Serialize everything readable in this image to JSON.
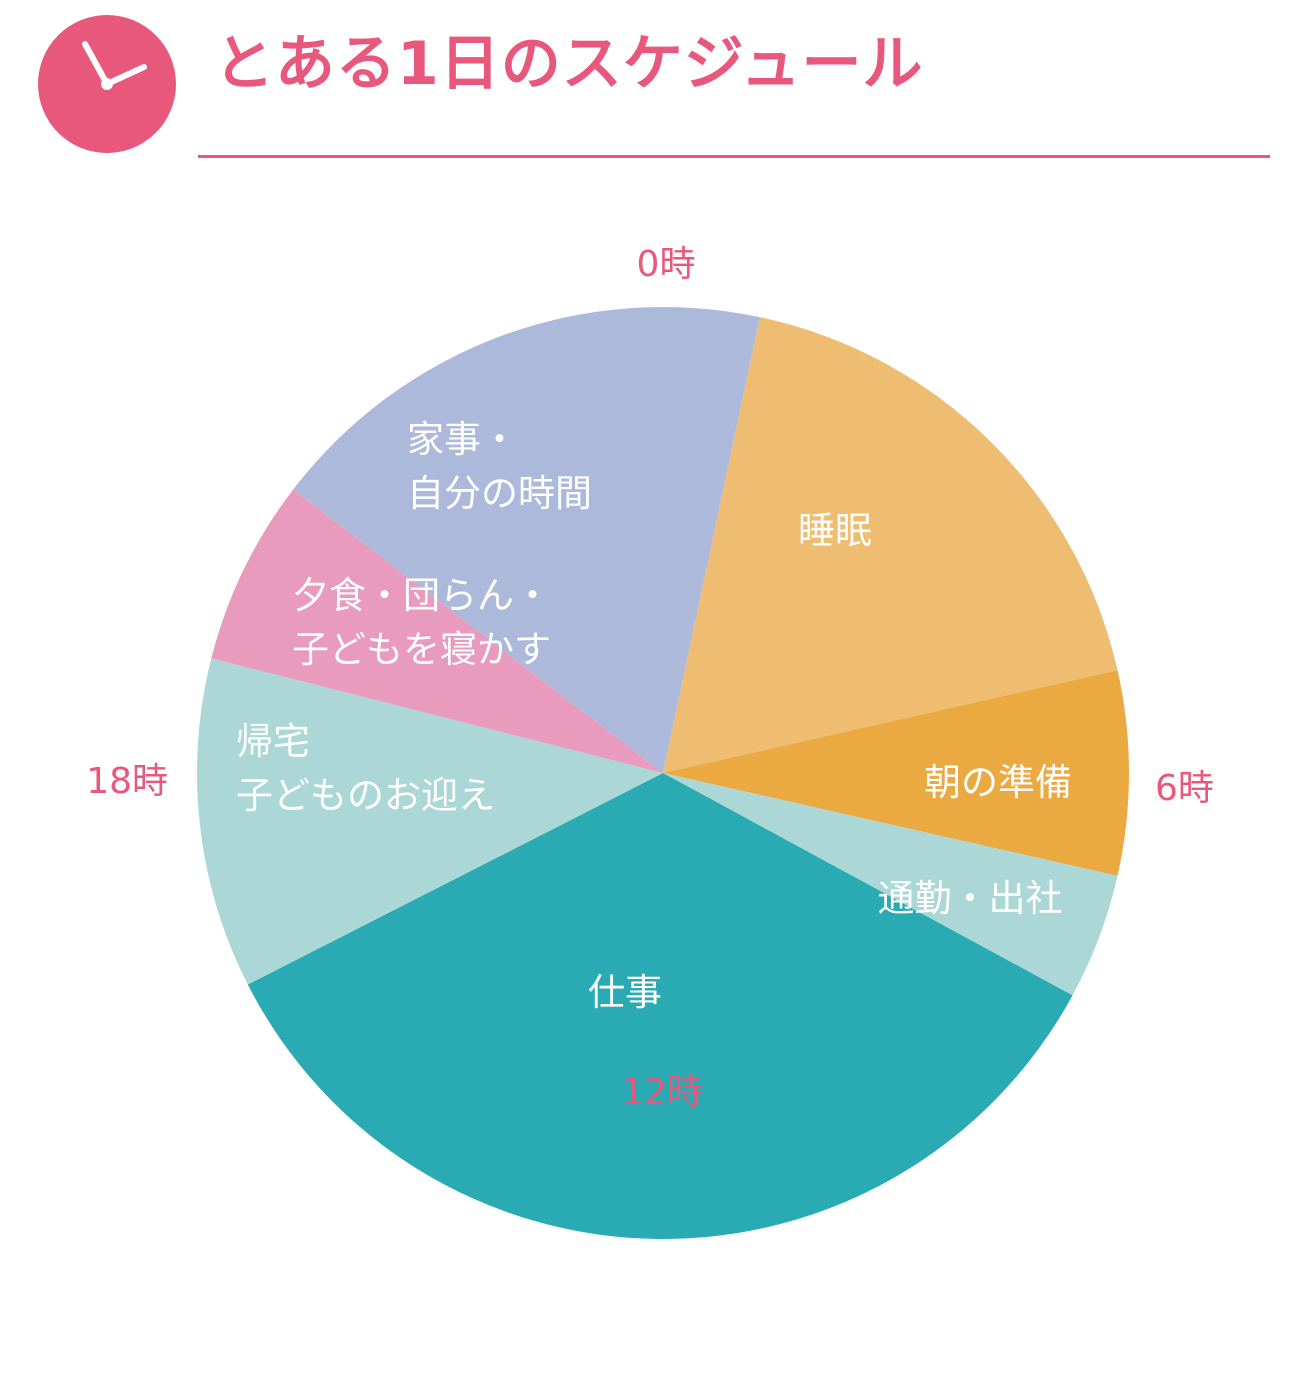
{
  "title": "とある1日のスケジュール",
  "colors": {
    "accent": "#e8577c"
  },
  "icons": {
    "header": "clock-icon"
  },
  "chart_data": {
    "type": "pie",
    "title": "とある1日のスケジュール",
    "unit": "hours",
    "start_angle_hour": 0,
    "hour_labels": [
      {
        "hour": 0,
        "label": "0時"
      },
      {
        "hour": 6,
        "label": "6時"
      },
      {
        "hour": 12,
        "label": "12時"
      },
      {
        "hour": 18,
        "label": "18時"
      }
    ],
    "slices": [
      {
        "lines": [
          "睡眠"
        ],
        "start": 0.8,
        "end": 5.15,
        "color": "#efbd72"
      },
      {
        "lines": [
          "朝の準備"
        ],
        "start": 5.15,
        "end": 6.85,
        "color": "#eba942"
      },
      {
        "lines": [
          "通勤・出社"
        ],
        "start": 6.85,
        "end": 7.9,
        "color": "#acd7d7"
      },
      {
        "lines": [
          "仕事"
        ],
        "start": 7.9,
        "end": 16.2,
        "color": "#2aabb3"
      },
      {
        "lines": [
          "帰宅",
          "子どものお迎え"
        ],
        "start": 16.2,
        "end": 18.95,
        "color": "#acd7d7"
      },
      {
        "lines": [
          "夕食・団らん・",
          "子どもを寝かす"
        ],
        "start": 18.95,
        "end": 20.5,
        "color": "#e89bbc"
      },
      {
        "lines": [
          "家事・",
          "自分の時間"
        ],
        "start": 20.5,
        "end": 24.8,
        "color": "#acb9db"
      }
    ]
  }
}
